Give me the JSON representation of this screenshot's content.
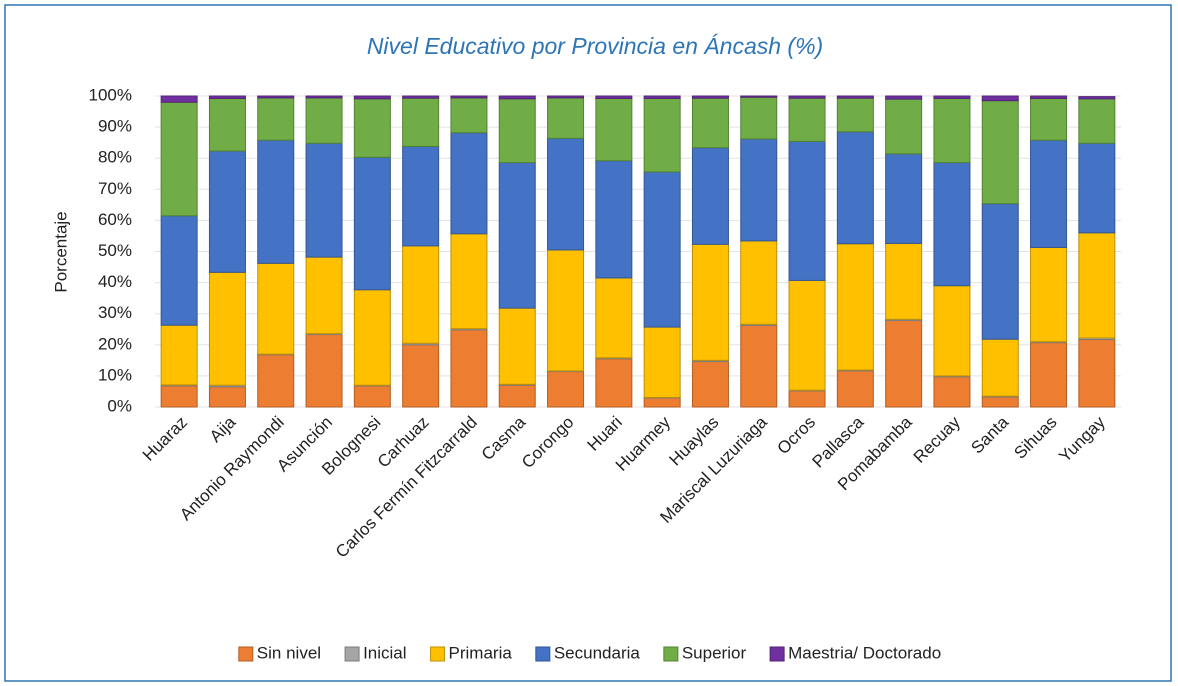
{
  "chart_data": {
    "type": "stacked_bar",
    "title": "Nivel Educativo por Provincia en Áncash (%)",
    "y_label": "Porcentaje",
    "categories": [
      "Huaraz",
      "Aija",
      "Antonio Raymondi",
      "Asunción",
      "Bolognesi",
      "Carhuaz",
      "Carlos Fermín Fitzcarrald",
      "Casma",
      "Corongo",
      "Huari",
      "Huarmey",
      "Huaylas",
      "Mariscal Luzuriaga",
      "Ocros",
      "Pallasca",
      "Pomabamba",
      "Recuay",
      "Santa",
      "Sihuas",
      "Yungay"
    ],
    "series": [
      {
        "name": "Sin nivel",
        "color": "#ed7d31",
        "values": [
          6.8,
          6.5,
          16.8,
          23.3,
          6.8,
          20.0,
          24.8,
          7.0,
          11.4,
          15.5,
          2.9,
          14.6,
          26.2,
          5.2,
          11.6,
          27.8,
          9.7,
          3.2,
          20.7,
          21.7
        ]
      },
      {
        "name": "Inicial",
        "color": "#a5a5a5",
        "values": [
          0.3,
          0.5,
          0.2,
          0.3,
          0.2,
          0.5,
          0.4,
          0.3,
          0.2,
          0.3,
          0.2,
          0.4,
          0.4,
          0.2,
          0.3,
          0.4,
          0.3,
          0.3,
          0.3,
          0.5
        ]
      },
      {
        "name": "Primaria",
        "color": "#ffc000",
        "values": [
          19.2,
          36.3,
          29.2,
          24.6,
          30.7,
          31.3,
          30.5,
          24.5,
          38.9,
          25.7,
          22.6,
          37.3,
          26.8,
          35.3,
          40.6,
          24.4,
          29.0,
          18.3,
          30.3,
          33.8
        ]
      },
      {
        "name": "Secundaria",
        "color": "#4472c4",
        "values": [
          35.2,
          39.0,
          39.6,
          36.6,
          42.6,
          32.0,
          32.5,
          46.8,
          35.9,
          37.7,
          49.9,
          31.1,
          32.8,
          44.7,
          36.0,
          28.8,
          39.6,
          43.6,
          34.5,
          28.8
        ]
      },
      {
        "name": "Superior",
        "color": "#70ad47",
        "values": [
          36.5,
          16.9,
          13.6,
          14.6,
          18.8,
          15.5,
          11.2,
          20.5,
          13.0,
          20.0,
          23.6,
          15.9,
          13.4,
          13.9,
          10.8,
          17.6,
          20.6,
          33.1,
          13.4,
          14.3
        ]
      },
      {
        "name": "Maestria/ Doctorado",
        "color": "#7030a0",
        "values": [
          2.0,
          0.8,
          0.6,
          0.6,
          0.9,
          0.7,
          0.6,
          0.9,
          0.6,
          0.8,
          0.8,
          0.7,
          0.4,
          0.7,
          0.7,
          1.0,
          0.8,
          1.5,
          0.8,
          0.7
        ]
      }
    ],
    "ylim": [
      0,
      100
    ],
    "yticks": [
      {
        "value": 0,
        "label": "0%"
      },
      {
        "value": 10,
        "label": "10%"
      },
      {
        "value": 20,
        "label": "20%"
      },
      {
        "value": 30,
        "label": "30%"
      },
      {
        "value": 40,
        "label": "40%"
      },
      {
        "value": 50,
        "label": "50%"
      },
      {
        "value": 60,
        "label": "60%"
      },
      {
        "value": 70,
        "label": "70%"
      },
      {
        "value": 80,
        "label": "80%"
      },
      {
        "value": 90,
        "label": "90%"
      },
      {
        "value": 100,
        "label": "100%"
      }
    ],
    "grid": true,
    "legend": "bottom"
  }
}
